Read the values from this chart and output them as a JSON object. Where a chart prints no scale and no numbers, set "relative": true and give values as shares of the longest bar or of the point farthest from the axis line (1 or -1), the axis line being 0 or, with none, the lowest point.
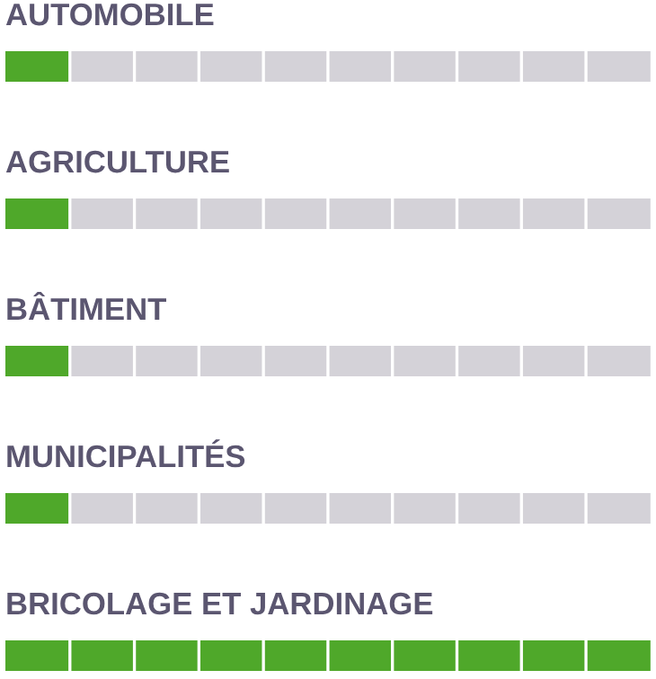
{
  "chart_data": {
    "type": "bar",
    "orientation": "horizontal",
    "relative": true,
    "stacked": true,
    "categories": [
      "AUTOMOBILE",
      "AGRICULTURE",
      "BÂTIMENT",
      "MUNICIPALITÉS",
      "BRICOLAGE ET JARDINAGE"
    ],
    "series": [
      {
        "color": "#4fa82a",
        "values": [
          0.1,
          0.1,
          0.1,
          0.1,
          1
        ]
      },
      {
        "color": "#d4d2d8",
        "values": [
          0.9,
          0.9,
          0.9,
          0.9,
          0
        ]
      }
    ]
  }
}
